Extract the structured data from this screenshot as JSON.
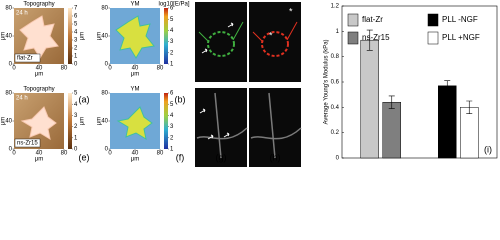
{
  "panels": [
    {
      "time": "24 h",
      "title": "Topography",
      "sample": "flat-Zr",
      "letter": "(a)",
      "unit": "μm",
      "xticks": [
        0,
        40,
        80
      ],
      "yticks": [
        0,
        40,
        80
      ],
      "cbar_label": "μm",
      "cbar_ticks": [
        0,
        1,
        2,
        3,
        4,
        5,
        6,
        7
      ]
    },
    {
      "title": "YM",
      "cbar_title": "log10[E/Pa]",
      "letter": "(b)",
      "unit": "μm",
      "xticks": [
        0,
        40,
        80
      ],
      "yticks": [
        0,
        40,
        80
      ],
      "cbar_ticks": [
        1,
        2,
        3,
        4,
        5,
        6
      ]
    },
    {
      "letter": "(c)"
    },
    {
      "letter": "(d)",
      "marker": "*"
    },
    {
      "time": "24 h",
      "title": "Topography",
      "sample": "ns-Zr15",
      "letter": "(e)",
      "unit": "μm",
      "xticks": [
        0,
        40,
        80
      ],
      "yticks": [
        0,
        40,
        80
      ],
      "cbar_label": "μm",
      "cbar_ticks": [
        0,
        1,
        2,
        3,
        4,
        5
      ]
    },
    {
      "title": "YM",
      "letter": "(f)",
      "unit": "μm",
      "xticks": [
        0,
        40,
        80
      ],
      "yticks": [
        0,
        40,
        80
      ],
      "cbar_ticks": [
        1,
        2,
        3,
        4,
        5,
        6
      ]
    },
    {
      "letter": "(g)"
    },
    {
      "letter": "(h)"
    }
  ],
  "chart_data": {
    "type": "bar",
    "y_label": "Average Young's Modulus (kPa)",
    "letter": "(i)",
    "categories": [
      null,
      null
    ],
    "series": [
      {
        "name": "flat-Zr",
        "color": "#c8c8c8",
        "values": [
          0.93,
          null
        ],
        "errors": [
          0.08,
          null
        ]
      },
      {
        "name": "ns-Zr15",
        "color": "#7f7f7f",
        "values": [
          0.44,
          null
        ],
        "errors": [
          0.05,
          null
        ]
      },
      {
        "name": "PLL -NGF",
        "color": "#000000",
        "values": [
          null,
          0.57
        ],
        "errors": [
          null,
          0.04
        ]
      },
      {
        "name": "PLL +NGF",
        "color": "#ffffff",
        "values": [
          null,
          0.4
        ],
        "errors": [
          null,
          0.05
        ]
      }
    ],
    "ylim": [
      0,
      1.2
    ],
    "yticks": [
      0,
      0.2,
      0.4,
      0.6,
      0.8,
      1,
      1.2
    ],
    "grid": false
  }
}
